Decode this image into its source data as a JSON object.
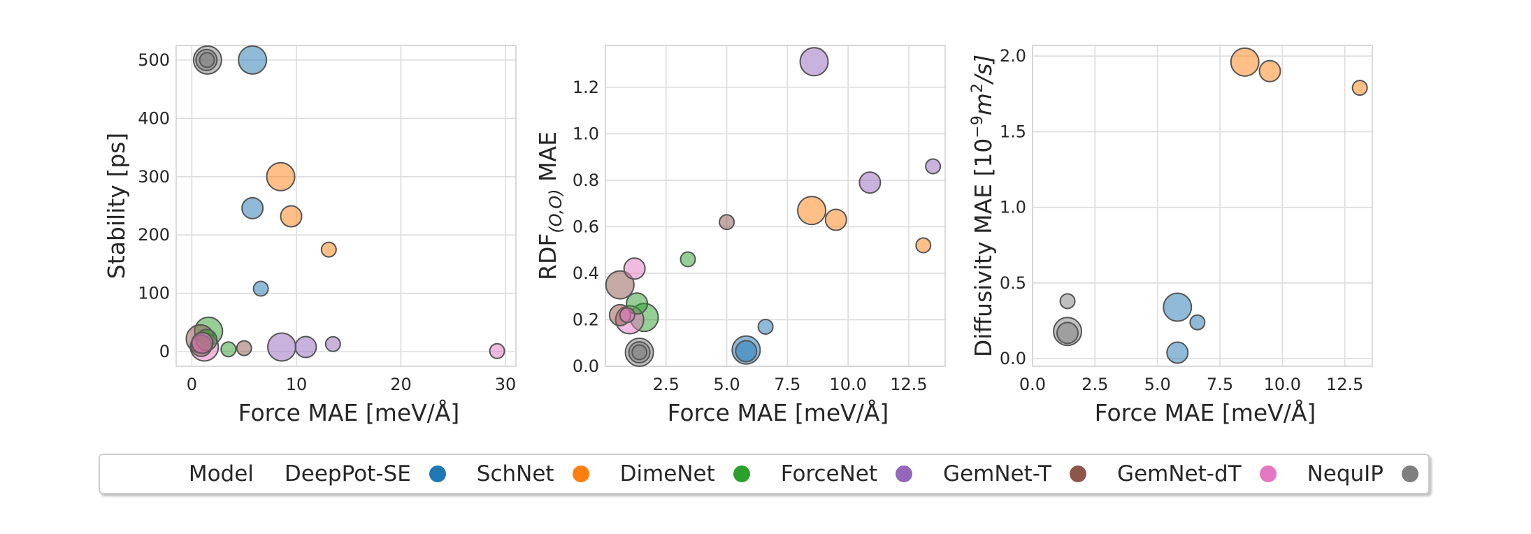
{
  "legend_title": "Model",
  "models": [
    {
      "name": "DeepPot-SE",
      "color": "#1f77b4"
    },
    {
      "name": "SchNet",
      "color": "#ff7f0e"
    },
    {
      "name": "DimeNet",
      "color": "#2ca02c"
    },
    {
      "name": "ForceNet",
      "color": "#9467bd"
    },
    {
      "name": "GemNet-T",
      "color": "#8c564b"
    },
    {
      "name": "GemNet-dT",
      "color": "#e377c2"
    },
    {
      "name": "NequIP",
      "color": "#7f7f7f"
    }
  ],
  "chart_data": [
    {
      "type": "scatter",
      "title": "",
      "xlabel": "Force MAE [meV/Å]",
      "ylabel": "Stability [ps]",
      "xlim": [
        -1.5,
        31
      ],
      "ylim": [
        -25,
        525
      ],
      "xticks": [
        0,
        10,
        20,
        30
      ],
      "yticks": [
        0,
        100,
        200,
        300,
        400,
        500
      ],
      "xtick_labels": [
        "0",
        "10",
        "20",
        "30"
      ],
      "ytick_labels": [
        "0",
        "100",
        "200",
        "300",
        "400",
        "500"
      ],
      "points": [
        {
          "model": "DeepPot-SE",
          "x": 5.8,
          "y": 500,
          "size": 3
        },
        {
          "model": "DeepPot-SE",
          "x": 5.8,
          "y": 246,
          "size": 2.2
        },
        {
          "model": "DeepPot-SE",
          "x": 6.6,
          "y": 108,
          "size": 1.4
        },
        {
          "model": "SchNet",
          "x": 8.5,
          "y": 300,
          "size": 3
        },
        {
          "model": "SchNet",
          "x": 9.5,
          "y": 232,
          "size": 2.2
        },
        {
          "model": "SchNet",
          "x": 13.1,
          "y": 175,
          "size": 1.4
        },
        {
          "model": "DimeNet",
          "x": 1.6,
          "y": 35,
          "size": 3
        },
        {
          "model": "DimeNet",
          "x": 1.4,
          "y": 20,
          "size": 2.2
        },
        {
          "model": "DimeNet",
          "x": 3.5,
          "y": 4,
          "size": 1.4
        },
        {
          "model": "ForceNet",
          "x": 8.6,
          "y": 8,
          "size": 3
        },
        {
          "model": "ForceNet",
          "x": 10.9,
          "y": 8,
          "size": 2.2
        },
        {
          "model": "ForceNet",
          "x": 13.5,
          "y": 13,
          "size": 1.4
        },
        {
          "model": "GemNet-T",
          "x": 0.8,
          "y": 22,
          "size": 3
        },
        {
          "model": "GemNet-T",
          "x": 0.9,
          "y": 10,
          "size": 2.2
        },
        {
          "model": "GemNet-T",
          "x": 5.0,
          "y": 6,
          "size": 1.4
        },
        {
          "model": "GemNet-dT",
          "x": 1.2,
          "y": 8,
          "size": 3
        },
        {
          "model": "GemNet-dT",
          "x": 1.0,
          "y": 15,
          "size": 2.2
        },
        {
          "model": "GemNet-dT",
          "x": 29.2,
          "y": 1,
          "size": 1.4
        },
        {
          "model": "NequIP",
          "x": 1.5,
          "y": 500,
          "size": 3
        },
        {
          "model": "NequIP",
          "x": 1.4,
          "y": 500,
          "size": 2.2
        },
        {
          "model": "NequIP",
          "x": 1.45,
          "y": 500,
          "size": 1.4
        }
      ]
    },
    {
      "type": "scatter",
      "title": "",
      "xlabel": "Force MAE [meV/Å]",
      "ylabel": "RDF(O,O) MAE",
      "ylabel_main": "RDF",
      "ylabel_sub": "(O,O)",
      "ylabel_tail": " MAE",
      "xlim": [
        0.0,
        14.0
      ],
      "ylim": [
        0.0,
        1.38
      ],
      "xticks": [
        2.5,
        5.0,
        7.5,
        10.0,
        12.5
      ],
      "yticks": [
        0.0,
        0.2,
        0.4,
        0.6,
        0.8,
        1.0,
        1.2
      ],
      "xtick_labels": [
        "2.5",
        "5.0",
        "7.5",
        "10.0",
        "12.5"
      ],
      "ytick_labels": [
        "0.0",
        "0.2",
        "0.4",
        "0.6",
        "0.8",
        "1.0",
        "1.2"
      ],
      "points": [
        {
          "model": "DeepPot-SE",
          "x": 5.8,
          "y": 0.07,
          "size": 3
        },
        {
          "model": "DeepPot-SE",
          "x": 5.8,
          "y": 0.065,
          "size": 2.2
        },
        {
          "model": "DeepPot-SE",
          "x": 6.6,
          "y": 0.17,
          "size": 1.4
        },
        {
          "model": "SchNet",
          "x": 8.5,
          "y": 0.67,
          "size": 3
        },
        {
          "model": "SchNet",
          "x": 9.5,
          "y": 0.63,
          "size": 2.2
        },
        {
          "model": "SchNet",
          "x": 13.1,
          "y": 0.52,
          "size": 1.4
        },
        {
          "model": "DimeNet",
          "x": 1.6,
          "y": 0.21,
          "size": 3
        },
        {
          "model": "DimeNet",
          "x": 1.3,
          "y": 0.27,
          "size": 2.2
        },
        {
          "model": "DimeNet",
          "x": 3.4,
          "y": 0.46,
          "size": 1.4
        },
        {
          "model": "ForceNet",
          "x": 8.6,
          "y": 1.31,
          "size": 3
        },
        {
          "model": "ForceNet",
          "x": 10.9,
          "y": 0.79,
          "size": 2.2
        },
        {
          "model": "ForceNet",
          "x": 13.5,
          "y": 0.86,
          "size": 1.4
        },
        {
          "model": "GemNet-T",
          "x": 0.6,
          "y": 0.35,
          "size": 3
        },
        {
          "model": "GemNet-T",
          "x": 0.6,
          "y": 0.22,
          "size": 2.2
        },
        {
          "model": "GemNet-T",
          "x": 5.0,
          "y": 0.62,
          "size": 1.4
        },
        {
          "model": "GemNet-dT",
          "x": 1.0,
          "y": 0.2,
          "size": 3
        },
        {
          "model": "GemNet-dT",
          "x": 1.2,
          "y": 0.42,
          "size": 2.2
        },
        {
          "model": "GemNet-dT",
          "x": 0.9,
          "y": 0.22,
          "size": 1.4
        },
        {
          "model": "NequIP",
          "x": 1.4,
          "y": 0.06,
          "size": 3
        },
        {
          "model": "NequIP",
          "x": 1.4,
          "y": 0.06,
          "size": 2.2
        },
        {
          "model": "NequIP",
          "x": 1.4,
          "y": 0.06,
          "size": 1.4
        }
      ]
    },
    {
      "type": "scatter",
      "title": "",
      "xlabel": "Force MAE [meV/Å]",
      "ylabel": "Diffusivity MAE [10⁻⁹m²/s]",
      "ylabel_main": "Diffusivity MAE [10",
      "ylabel_exp1": "−9",
      "ylabel_unit": "m",
      "ylabel_exp2": "2",
      "ylabel_tail": "/s]",
      "xlim": [
        0.0,
        13.6
      ],
      "ylim": [
        -0.05,
        2.07
      ],
      "xticks": [
        0.0,
        2.5,
        5.0,
        7.5,
        10.0,
        12.5
      ],
      "yticks": [
        0.0,
        0.5,
        1.0,
        1.5,
        2.0
      ],
      "xtick_labels": [
        "0.0",
        "2.5",
        "5.0",
        "7.5",
        "10.0",
        "12.5"
      ],
      "ytick_labels": [
        "0.0",
        "0.5",
        "1.0",
        "1.5",
        "2.0"
      ],
      "points": [
        {
          "model": "DeepPot-SE",
          "x": 5.8,
          "y": 0.34,
          "size": 3
        },
        {
          "model": "DeepPot-SE",
          "x": 5.8,
          "y": 0.04,
          "size": 2.2
        },
        {
          "model": "DeepPot-SE",
          "x": 6.6,
          "y": 0.24,
          "size": 1.4
        },
        {
          "model": "SchNet",
          "x": 8.5,
          "y": 1.96,
          "size": 3
        },
        {
          "model": "SchNet",
          "x": 9.5,
          "y": 1.9,
          "size": 2.2
        },
        {
          "model": "SchNet",
          "x": 13.1,
          "y": 1.79,
          "size": 1.4
        },
        {
          "model": "NequIP",
          "x": 1.4,
          "y": 0.18,
          "size": 3
        },
        {
          "model": "NequIP",
          "x": 1.4,
          "y": 0.17,
          "size": 2.2
        },
        {
          "model": "NequIP",
          "x": 1.4,
          "y": 0.38,
          "size": 1.4
        }
      ]
    }
  ]
}
